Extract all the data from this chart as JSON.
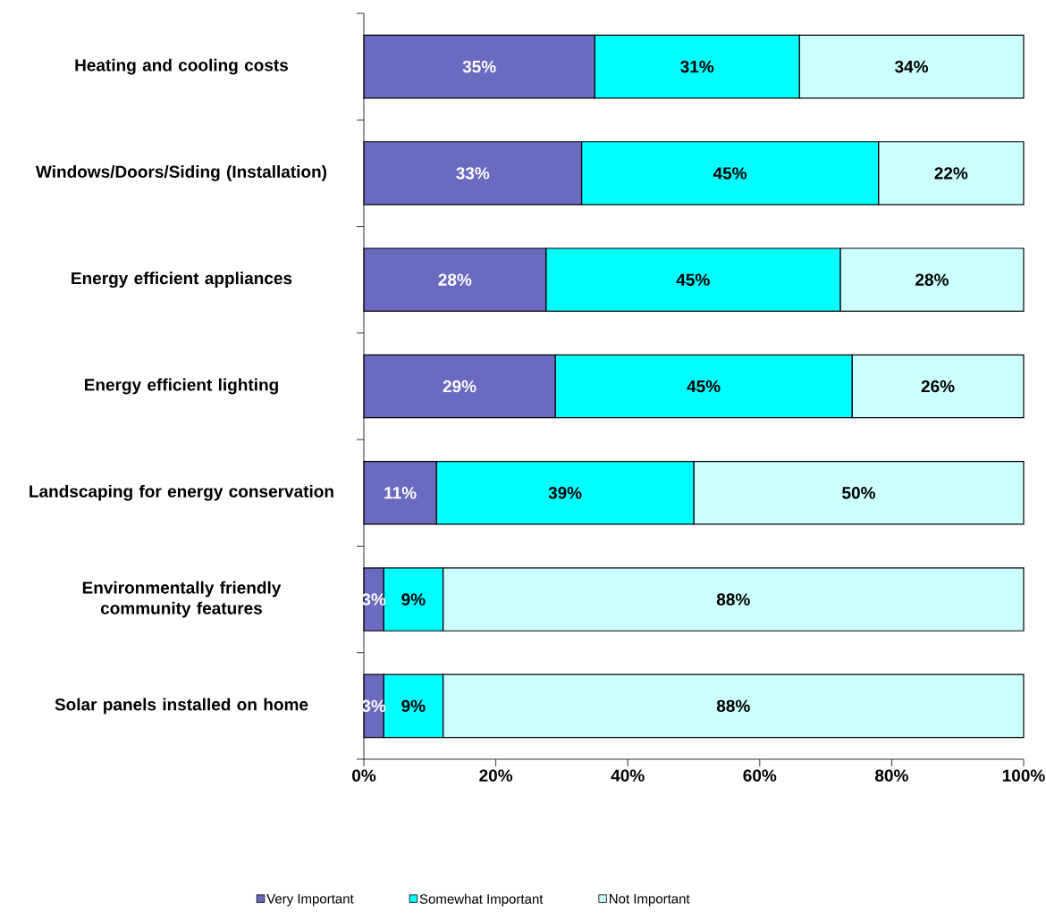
{
  "chart_data": {
    "type": "bar",
    "orientation": "horizontal",
    "stacked": true,
    "categories": [
      "Heating and cooling costs",
      "Windows/Doors/Siding (Installation)",
      "Energy efficient appliances",
      "Energy efficient lighting",
      "Landscaping for energy conservation",
      "Environmentally friendly community features",
      "Solar panels installed on home"
    ],
    "series": [
      {
        "name": "Very Important",
        "color": "#6a6ac0",
        "values": [
          35,
          33,
          27.6,
          29,
          11,
          3,
          3
        ],
        "value_labels": [
          "35%",
          "33%",
          "28%",
          "29%",
          "11%",
          "3%",
          "3%"
        ]
      },
      {
        "name": "Somewhat Important",
        "color": "#00ffff",
        "values": [
          31,
          45,
          44.6,
          45,
          39,
          9,
          9
        ],
        "value_labels": [
          "31%",
          "45%",
          "45%",
          "45%",
          "39%",
          "9%",
          "9%"
        ]
      },
      {
        "name": "Not Important",
        "color": "#ccffff",
        "values": [
          34,
          22,
          27.8,
          26,
          50,
          88,
          88
        ],
        "value_labels": [
          "34%",
          "22%",
          "28%",
          "26%",
          "50%",
          "88%",
          "88%"
        ]
      }
    ],
    "xlim": [
      0,
      100
    ],
    "xticks": [
      {
        "value": 0,
        "label": "0%"
      },
      {
        "value": 20,
        "label": "20%"
      },
      {
        "value": 40,
        "label": "40%"
      },
      {
        "value": 60,
        "label": "60%"
      },
      {
        "value": 80,
        "label": "80%"
      },
      {
        "value": 100,
        "label": "100%"
      }
    ],
    "legend": "bottom"
  }
}
